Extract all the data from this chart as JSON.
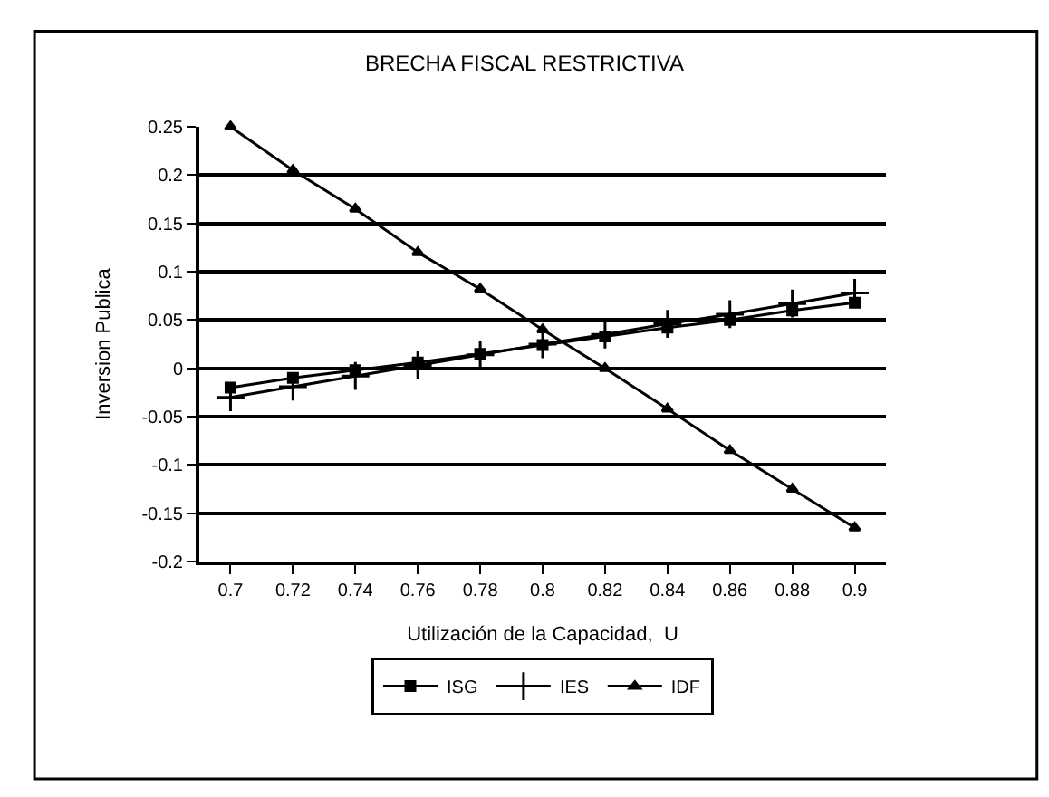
{
  "chart_data": {
    "type": "line",
    "title": "BRECHA FISCAL RESTRICTIVA",
    "xlabel": "Utilización de la Capacidad,  U",
    "ylabel": "Inversion Publica",
    "x": [
      0.7,
      0.72,
      0.74,
      0.76,
      0.78,
      0.8,
      0.82,
      0.84,
      0.86,
      0.88,
      0.9
    ],
    "series": [
      {
        "name": "ISG",
        "color": "#000000",
        "marker": "square",
        "values": [
          -0.02,
          -0.01,
          -0.002,
          0.006,
          0.015,
          0.024,
          0.033,
          0.042,
          0.05,
          0.06,
          0.068
        ]
      },
      {
        "name": "IES",
        "color": "#000000",
        "marker": "cross",
        "values": [
          -0.03,
          -0.019,
          -0.008,
          0.003,
          0.014,
          0.025,
          0.035,
          0.046,
          0.056,
          0.067,
          0.078
        ]
      },
      {
        "name": "IDF",
        "color": "#000000",
        "marker": "triangle",
        "values": [
          0.25,
          0.205,
          0.165,
          0.12,
          0.082,
          0.04,
          0.0,
          -0.042,
          -0.085,
          -0.125,
          -0.165
        ]
      }
    ],
    "xlim": [
      0.69,
      0.91
    ],
    "xticks": [
      0.7,
      0.72,
      0.74,
      0.76,
      0.78,
      0.8,
      0.82,
      0.84,
      0.86,
      0.88,
      0.9
    ],
    "ylim": [
      -0.2,
      0.25
    ],
    "yticks": [
      -0.2,
      -0.15,
      -0.1,
      -0.05,
      0,
      0.05,
      0.1,
      0.15,
      0.2,
      0.25
    ],
    "grid": "y",
    "legend": "bottom",
    "line_style": "solid"
  }
}
